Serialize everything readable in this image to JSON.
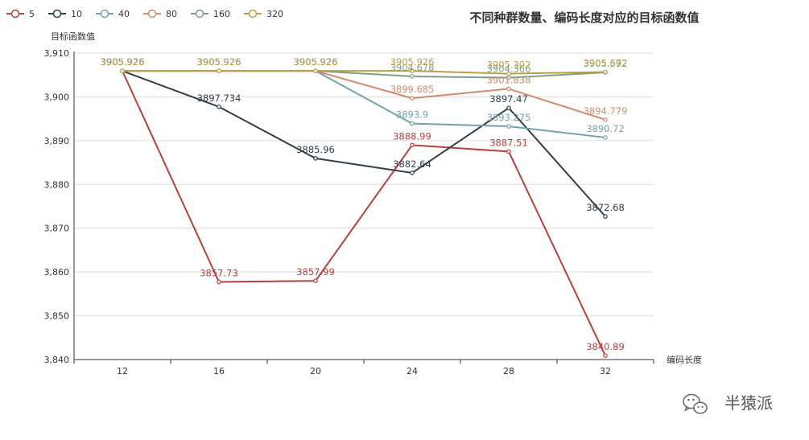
{
  "watermark": {
    "text": "半猿派",
    "icon": "wechat-icon"
  },
  "chart_data": {
    "type": "line",
    "title": "不同种群数量、编码长度对应的目标函数值",
    "xlabel": "编码长度",
    "ylabel": "目标函数值",
    "categories": [
      "12",
      "16",
      "20",
      "24",
      "28",
      "32"
    ],
    "ylim": [
      3840,
      3910
    ],
    "yticks": [
      3840,
      3850,
      3860,
      3870,
      3880,
      3890,
      3900,
      3910
    ],
    "ytick_labels": [
      "3,840",
      "3,850",
      "3,860",
      "3,870",
      "3,880",
      "3,890",
      "3,900",
      "3,910"
    ],
    "grid": true,
    "legend_position": "top-left",
    "series": [
      {
        "name": "5",
        "color": "#b5413c",
        "values": [
          3905.926,
          3857.73,
          3857.99,
          3888.99,
          3887.51,
          3840.89
        ],
        "labels": [
          "3905.926",
          "3857.73",
          "3857.99",
          "3888.99",
          "3887.51",
          "3840.89"
        ]
      },
      {
        "name": "10",
        "color": "#2f3e48",
        "values": [
          3905.926,
          3897.734,
          3885.96,
          3882.64,
          3897.47,
          3872.68
        ],
        "labels": [
          "3905.926",
          "3897.734",
          "3885.96",
          "3882.64",
          "3897.47",
          "3872.68"
        ]
      },
      {
        "name": "40",
        "color": "#6fa3a9",
        "values": [
          3905.926,
          3905.926,
          3905.926,
          3893.9,
          3893.275,
          3890.72
        ],
        "labels": [
          "3905.926",
          "3905.926",
          "3905.926",
          "3893.9",
          "3893.275",
          "3890.72"
        ]
      },
      {
        "name": "80",
        "color": "#d18a6e",
        "values": [
          3905.926,
          3905.926,
          3905.926,
          3899.685,
          3901.838,
          3894.779
        ],
        "labels": [
          "3905.926",
          "3905.926",
          "3905.926",
          "3899.685",
          "3901.838",
          "3894.779"
        ]
      },
      {
        "name": "160",
        "color": "#7f9e88",
        "values": [
          3905.926,
          3905.926,
          3905.926,
          3904.678,
          3904.366,
          3905.592
        ],
        "labels": [
          "3905.926",
          "3905.926",
          "3905.926",
          "3904.678",
          "3904.366",
          "3905.592"
        ]
      },
      {
        "name": "320",
        "color": "#b8a04a",
        "values": [
          3905.926,
          3905.926,
          3905.926,
          3905.926,
          3905.302,
          3905.672
        ],
        "labels": [
          "3905.926",
          "3905.926",
          "3905.926",
          "3905.926",
          "3905.302",
          "3905.672"
        ]
      }
    ]
  }
}
